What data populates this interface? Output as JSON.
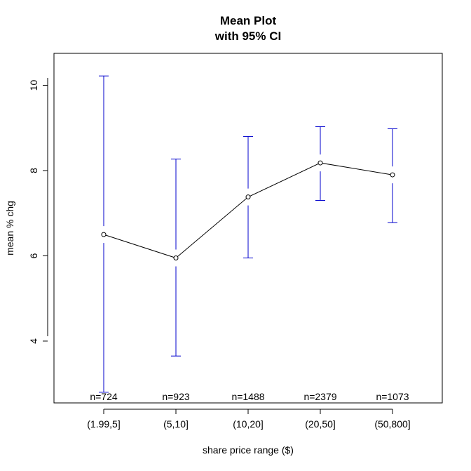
{
  "chart_data": {
    "type": "line",
    "title": "Mean Plot",
    "subtitle": "with 95% CI",
    "xlabel": "share price range ($)",
    "ylabel": "mean % chg",
    "categories": [
      "(1.99,5]",
      "(5,10]",
      "(10,20]",
      "(20,50]",
      "(50,800]"
    ],
    "means": [
      6.5,
      5.95,
      7.38,
      8.18,
      7.9
    ],
    "ci_lower": [
      2.8,
      3.65,
      5.95,
      7.3,
      6.78
    ],
    "ci_upper": [
      10.22,
      8.27,
      8.8,
      9.03,
      8.98
    ],
    "n_labels": [
      "n=724",
      "n=923",
      "n=1488",
      "n=2379",
      "n=1073"
    ],
    "yticks": [
      4,
      6,
      8,
      10
    ],
    "ylim": [
      2.55,
      10.75
    ],
    "grid": false,
    "colors": {
      "ci_bars": "#0000cd",
      "mean_line": "#000000",
      "axes": "#000000"
    }
  }
}
